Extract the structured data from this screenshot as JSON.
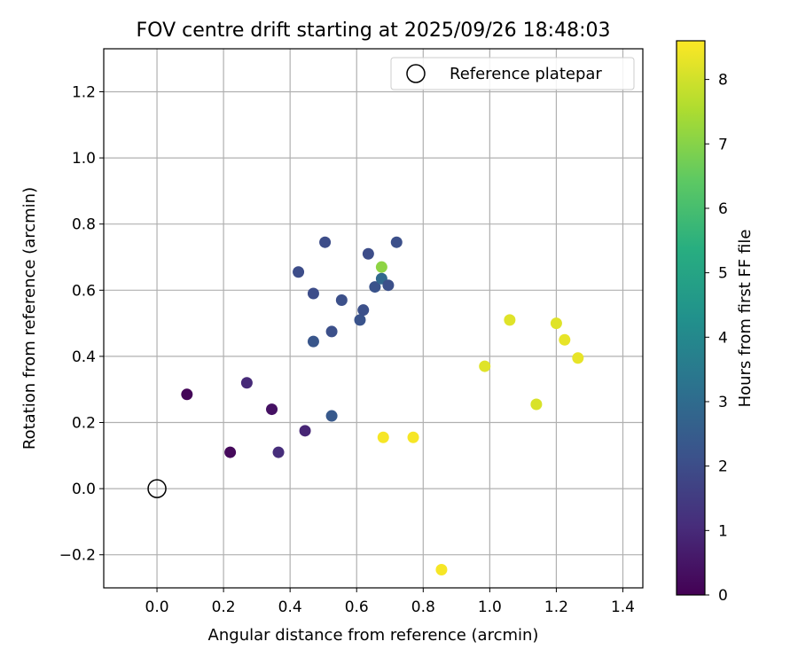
{
  "chart_data": {
    "type": "scatter",
    "title": "FOV centre drift starting at 2025/09/26 18:48:03",
    "xlabel": "Angular distance from reference (arcmin)",
    "ylabel": "Rotation from reference (arcmin)",
    "xlim": [
      -0.16,
      1.46
    ],
    "ylim": [
      -0.3,
      1.33
    ],
    "xticks": [
      0.0,
      0.2,
      0.4,
      0.6,
      0.8,
      1.0,
      1.2,
      1.4
    ],
    "xtick_labels": [
      "0.0",
      "0.2",
      "0.4",
      "0.6",
      "0.8",
      "1.0",
      "1.2",
      "1.4"
    ],
    "yticks": [
      -0.2,
      0.0,
      0.2,
      0.4,
      0.6,
      0.8,
      1.0,
      1.2
    ],
    "ytick_labels": [
      "−0.2",
      "0.0",
      "0.2",
      "0.4",
      "0.6",
      "0.8",
      "1.0",
      "1.2"
    ],
    "grid": true,
    "legend": {
      "placement": "top-right",
      "label": "Reference platepar"
    },
    "reference_point": {
      "x": 0.0,
      "y": 0.0
    },
    "colorbar": {
      "label": "Hours from first FF file",
      "min": 0,
      "max": 8.6,
      "ticks": [
        0,
        1,
        2,
        3,
        4,
        5,
        6,
        7,
        8
      ],
      "tick_labels": [
        "0",
        "1",
        "2",
        "3",
        "4",
        "5",
        "6",
        "7",
        "8"
      ],
      "colormap": "viridis"
    },
    "points": [
      {
        "x": 0.09,
        "y": 0.285,
        "hours": 0.1
      },
      {
        "x": 0.22,
        "y": 0.11,
        "hours": 0.2
      },
      {
        "x": 0.345,
        "y": 0.24,
        "hours": 0.4
      },
      {
        "x": 0.27,
        "y": 0.32,
        "hours": 1.0
      },
      {
        "x": 0.365,
        "y": 0.11,
        "hours": 1.1
      },
      {
        "x": 0.445,
        "y": 0.175,
        "hours": 0.9
      },
      {
        "x": 0.525,
        "y": 0.22,
        "hours": 2.4
      },
      {
        "x": 0.425,
        "y": 0.655,
        "hours": 2.0
      },
      {
        "x": 0.505,
        "y": 0.745,
        "hours": 2.0
      },
      {
        "x": 0.47,
        "y": 0.59,
        "hours": 2.0
      },
      {
        "x": 0.555,
        "y": 0.57,
        "hours": 2.1
      },
      {
        "x": 0.47,
        "y": 0.445,
        "hours": 2.3
      },
      {
        "x": 0.525,
        "y": 0.475,
        "hours": 2.1
      },
      {
        "x": 0.61,
        "y": 0.51,
        "hours": 2.2
      },
      {
        "x": 0.62,
        "y": 0.54,
        "hours": 2.1
      },
      {
        "x": 0.635,
        "y": 0.71,
        "hours": 2.0
      },
      {
        "x": 0.655,
        "y": 0.61,
        "hours": 2.2
      },
      {
        "x": 0.675,
        "y": 0.635,
        "hours": 2.9
      },
      {
        "x": 0.695,
        "y": 0.615,
        "hours": 2.1
      },
      {
        "x": 0.72,
        "y": 0.745,
        "hours": 2.1
      },
      {
        "x": 0.675,
        "y": 0.67,
        "hours": 7.1
      },
      {
        "x": 0.68,
        "y": 0.155,
        "hours": 8.5
      },
      {
        "x": 0.77,
        "y": 0.155,
        "hours": 8.5
      },
      {
        "x": 0.855,
        "y": -0.245,
        "hours": 8.5
      },
      {
        "x": 0.985,
        "y": 0.37,
        "hours": 8.2
      },
      {
        "x": 1.06,
        "y": 0.51,
        "hours": 8.2
      },
      {
        "x": 1.14,
        "y": 0.255,
        "hours": 8.1
      },
      {
        "x": 1.2,
        "y": 0.5,
        "hours": 8.2
      },
      {
        "x": 1.225,
        "y": 0.45,
        "hours": 8.3
      },
      {
        "x": 1.265,
        "y": 0.395,
        "hours": 8.3
      }
    ]
  }
}
